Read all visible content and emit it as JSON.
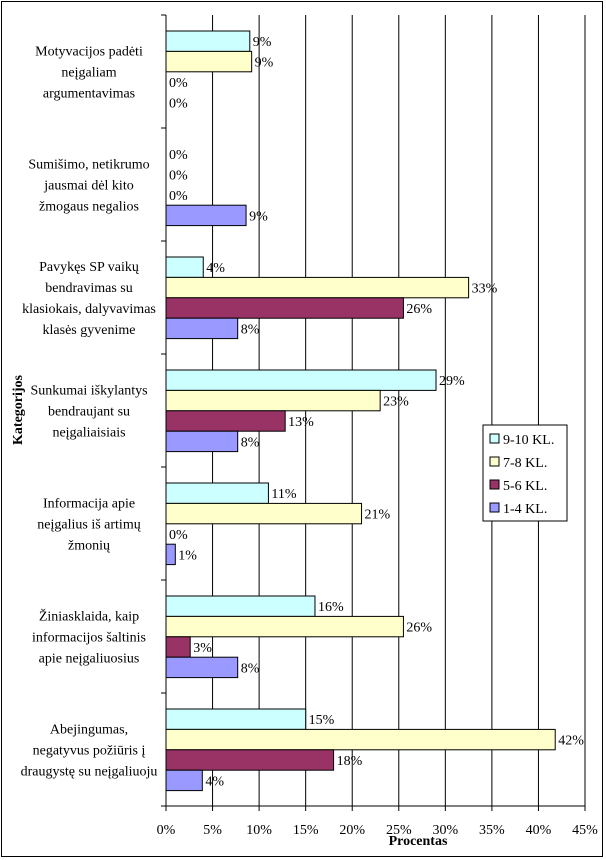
{
  "chart_data": {
    "type": "bar",
    "orientation": "horizontal",
    "title": "",
    "xlabel": "Procentas",
    "ylabel": "Kategorijos",
    "xlim": [
      0,
      45
    ],
    "x_ticks": [
      0,
      5,
      10,
      15,
      20,
      25,
      30,
      35,
      40,
      45
    ],
    "x_tick_labels": [
      "0%",
      "5%",
      "10%",
      "15%",
      "20%",
      "25%",
      "30%",
      "35%",
      "40%",
      "45%"
    ],
    "grid": "vertical",
    "legend_position": "right",
    "categories": [
      [
        "Motyvacijos padėti",
        "neįgaliam",
        "argumentavimas"
      ],
      [
        "Sumišimo, netikrumo",
        "jausmai dėl kito",
        "žmogaus negalios"
      ],
      [
        "Pavykęs SP vaikų",
        "bendravimas su",
        "klasiokais, dalyvavimas",
        "klasės gyvenime"
      ],
      [
        "Sunkumai iškylantys",
        "bendraujant su",
        "neįgaliaisiais"
      ],
      [
        "Informacija apie",
        "neįgalius iš artimų",
        "žmonių"
      ],
      [
        "Žiniasklaida, kaip",
        "informacijos šaltinis",
        "apie neįgaliuosius"
      ],
      [
        "Abejingumas,",
        "negatyvus požiūris į",
        "draugystę su neįgaliuoju"
      ]
    ],
    "series": [
      {
        "name": "9-10 KL.",
        "color": "#ccffff",
        "values": [
          9,
          0,
          4,
          29,
          11,
          16,
          15
        ],
        "labels": [
          "9%",
          "0%",
          "4%",
          "29%",
          "11%",
          "16%",
          "15%"
        ]
      },
      {
        "name": "7-8 KL.",
        "color": "#ffffcc",
        "values": [
          9.2,
          0,
          32.5,
          23,
          21,
          25.5,
          41.8
        ],
        "labels": [
          "9%",
          "0%",
          "33%",
          "23%",
          "21%",
          "26%",
          "42%"
        ]
      },
      {
        "name": "5-6 KL.",
        "color": "#993366",
        "values": [
          0,
          0,
          25.5,
          12.8,
          0,
          2.6,
          18
        ],
        "labels": [
          "0%",
          "0%",
          "26%",
          "13%",
          "0%",
          "3%",
          "18%"
        ]
      },
      {
        "name": "1-4 KL.",
        "color": "#9999ff",
        "values": [
          0,
          8.6,
          7.7,
          7.7,
          1,
          7.7,
          3.9
        ],
        "labels": [
          "0%",
          "9%",
          "8%",
          "8%",
          "1%",
          "8%",
          "4%"
        ]
      }
    ]
  }
}
